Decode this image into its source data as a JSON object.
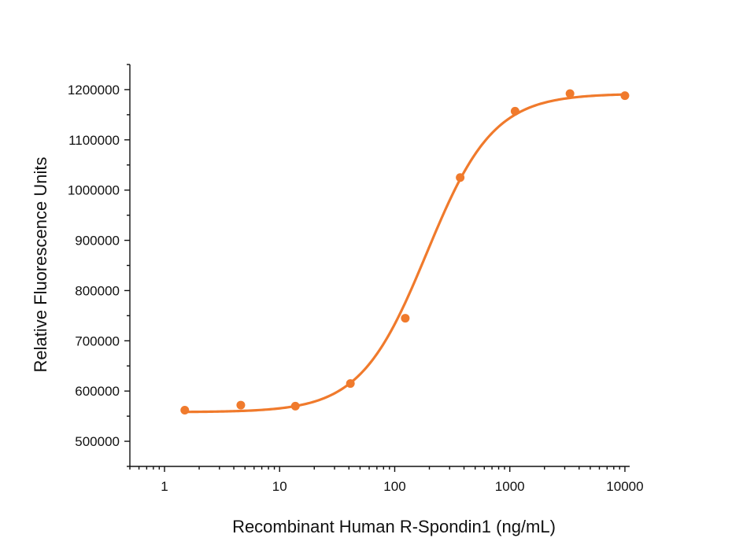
{
  "chart_data": {
    "type": "scatter",
    "title": "",
    "xlabel": "Recombinant Human R-Spondin1 (ng/mL)",
    "ylabel": "Relative Fluorescence Units",
    "xscale": "log",
    "xlim": [
      0.5,
      11000
    ],
    "ylim": [
      450000,
      1250000
    ],
    "grid": false,
    "legend": "none",
    "color": "#f07a2c",
    "x_ticks": [
      {
        "value": 1,
        "label": "1"
      },
      {
        "value": 10,
        "label": "10"
      },
      {
        "value": 100,
        "label": "100"
      },
      {
        "value": 1000,
        "label": "1000"
      },
      {
        "value": 10000,
        "label": "10000"
      }
    ],
    "y_ticks": [
      {
        "value": 500000,
        "label": "500000"
      },
      {
        "value": 600000,
        "label": "600000"
      },
      {
        "value": 700000,
        "label": "700000"
      },
      {
        "value": 800000,
        "label": "800000"
      },
      {
        "value": 900000,
        "label": "900000"
      },
      {
        "value": 1000000,
        "label": "1000000"
      },
      {
        "value": 1100000,
        "label": "1100000"
      },
      {
        "value": 1200000,
        "label": "1200000"
      }
    ],
    "series": [
      {
        "x": [
          1.5,
          4.6,
          13.7,
          41.2,
          123.5,
          370.4,
          1111,
          3333,
          10000
        ],
        "y": [
          562000,
          572000,
          570000,
          615000,
          745000,
          1025000,
          1157000,
          1192000,
          1188000
        ]
      }
    ],
    "fit_curve": {
      "model": "4PL",
      "bottom": 558000,
      "top": 1192000,
      "ec50": 190,
      "hill": 1.5
    }
  }
}
